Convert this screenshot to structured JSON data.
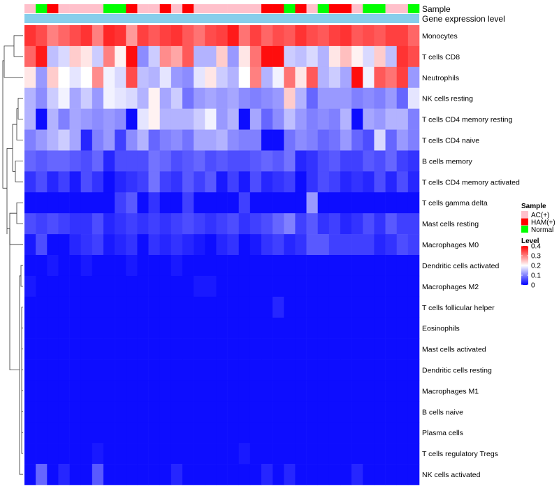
{
  "chart_data": {
    "type": "heatmap",
    "annotation_labels": {
      "sample": "Sample",
      "gene": "Gene expression level"
    },
    "sample_classes": [
      "AC(+)",
      "HAM(+)",
      "Normal"
    ],
    "sample_colors": {
      "AC(+)": "#ffc0cb",
      "HAM(+)": "#ff0000",
      "Normal": "#00ff00"
    },
    "sample_annotation": [
      "AC(+)",
      "Normal",
      "HAM(+)",
      "AC(+)",
      "AC(+)",
      "AC(+)",
      "AC(+)",
      "Normal",
      "Normal",
      "HAM(+)",
      "AC(+)",
      "AC(+)",
      "HAM(+)",
      "AC(+)",
      "HAM(+)",
      "AC(+)",
      "AC(+)",
      "AC(+)",
      "AC(+)",
      "AC(+)",
      "AC(+)",
      "HAM(+)",
      "HAM(+)",
      "Normal",
      "HAM(+)",
      "AC(+)",
      "Normal",
      "HAM(+)",
      "HAM(+)",
      "AC(+)",
      "Normal",
      "Normal",
      "AC(+)",
      "AC(+)",
      "Normal"
    ],
    "gene_annotation_color": "#87ceeb",
    "legend": {
      "sample_title": "Sample",
      "level_title": "Level",
      "ticks": [
        "0.4",
        "0.3",
        "0.2",
        "0.1",
        "0"
      ]
    },
    "color_scale": {
      "min": 0,
      "mid": 0.2,
      "max": 0.4,
      "low": "#0000ff",
      "midColor": "#ffffff",
      "high": "#ff0000"
    },
    "rows": [
      "Monocytes",
      "T cells CD8",
      "Neutrophils",
      "NK cells resting",
      "T cells CD4 memory resting",
      "T cells CD4 naive",
      "B cells memory",
      "T cells CD4 memory activated",
      "T cells gamma delta",
      "Mast cells resting",
      "Macrophages M0",
      "Dendritic cells activated",
      "Macrophages M2",
      "T cells follicular helper",
      "Eosinophils",
      "Mast cells activated",
      "Dendritic cells resting",
      "Macrophages M1",
      "B cells naive",
      "Plasma cells",
      "T cells regulatory  Tregs",
      "NK cells activated"
    ],
    "values": [
      [
        0.36,
        0.34,
        0.3,
        0.32,
        0.34,
        0.36,
        0.3,
        0.37,
        0.36,
        0.28,
        0.35,
        0.33,
        0.35,
        0.36,
        0.33,
        0.31,
        0.34,
        0.35,
        0.38,
        0.31,
        0.35,
        0.32,
        0.34,
        0.33,
        0.36,
        0.34,
        0.33,
        0.35,
        0.36,
        0.33,
        0.34,
        0.33,
        0.35,
        0.35,
        0.32
      ],
      [
        0.32,
        0.38,
        0.15,
        0.17,
        0.24,
        0.22,
        0.16,
        0.3,
        0.21,
        0.39,
        0.11,
        0.16,
        0.29,
        0.27,
        0.33,
        0.14,
        0.14,
        0.24,
        0.12,
        0.22,
        0.31,
        0.39,
        0.39,
        0.16,
        0.15,
        0.17,
        0.14,
        0.22,
        0.25,
        0.21,
        0.17,
        0.24,
        0.15,
        0.36,
        0.34
      ],
      [
        0.22,
        0.12,
        0.24,
        0.2,
        0.18,
        0.2,
        0.29,
        0.19,
        0.17,
        0.34,
        0.15,
        0.14,
        0.18,
        0.12,
        0.11,
        0.18,
        0.22,
        0.16,
        0.14,
        0.2,
        0.3,
        0.14,
        0.19,
        0.31,
        0.22,
        0.33,
        0.14,
        0.16,
        0.13,
        0.39,
        0.19,
        0.33,
        0.31,
        0.35,
        0.12
      ],
      [
        0.14,
        0.11,
        0.16,
        0.19,
        0.13,
        0.16,
        0.12,
        0.19,
        0.18,
        0.17,
        0.14,
        0.21,
        0.13,
        0.16,
        0.09,
        0.12,
        0.13,
        0.12,
        0.13,
        0.11,
        0.1,
        0.11,
        0.12,
        0.24,
        0.14,
        0.08,
        0.12,
        0.12,
        0.12,
        0.1,
        0.11,
        0.1,
        0.12,
        0.08,
        0.18
      ],
      [
        0.14,
        0.01,
        0.14,
        0.1,
        0.13,
        0.12,
        0.11,
        0.12,
        0.11,
        0.01,
        0.18,
        0.21,
        0.14,
        0.14,
        0.14,
        0.16,
        0.19,
        0.12,
        0.14,
        0.01,
        0.13,
        0.08,
        0.11,
        0.15,
        0.12,
        0.1,
        0.11,
        0.1,
        0.14,
        0.01,
        0.13,
        0.12,
        0.14,
        0.14,
        0.1
      ],
      [
        0.1,
        0.12,
        0.14,
        0.16,
        0.13,
        0.03,
        0.1,
        0.12,
        0.05,
        0.11,
        0.14,
        0.08,
        0.1,
        0.11,
        0.09,
        0.13,
        0.13,
        0.14,
        0.11,
        0.1,
        0.1,
        0.01,
        0.01,
        0.09,
        0.11,
        0.1,
        0.08,
        0.09,
        0.12,
        0.08,
        0.06,
        0.17,
        0.08,
        0.12,
        0.1
      ],
      [
        0.08,
        0.07,
        0.08,
        0.08,
        0.07,
        0.06,
        0.08,
        0.03,
        0.06,
        0.06,
        0.06,
        0.09,
        0.08,
        0.06,
        0.07,
        0.08,
        0.06,
        0.07,
        0.06,
        0.06,
        0.07,
        0.08,
        0.07,
        0.09,
        0.03,
        0.04,
        0.06,
        0.07,
        0.05,
        0.05,
        0.07,
        0.06,
        0.08,
        0.05,
        0.04
      ],
      [
        0.04,
        0.06,
        0.03,
        0.05,
        0.02,
        0.06,
        0.04,
        0.01,
        0.03,
        0.04,
        0.05,
        0.09,
        0.05,
        0.04,
        0.07,
        0.05,
        0.07,
        0.02,
        0.05,
        0.02,
        0.06,
        0.03,
        0.04,
        0.05,
        0.01,
        0.04,
        0.06,
        0.05,
        0.03,
        0.04,
        0.03,
        0.06,
        0.03,
        0.06,
        0.03
      ],
      [
        0.01,
        0.01,
        0.01,
        0.01,
        0.01,
        0.01,
        0.01,
        0.01,
        0.05,
        0.07,
        0.01,
        0.04,
        0.01,
        0.01,
        0.05,
        0.01,
        0.01,
        0.01,
        0.01,
        0.05,
        0.01,
        0.01,
        0.01,
        0.01,
        0.01,
        0.12,
        0.01,
        0.01,
        0.01,
        0.01,
        0.01,
        0.01,
        0.01,
        0.01,
        0.01
      ],
      [
        0.06,
        0.05,
        0.06,
        0.05,
        0.04,
        0.04,
        0.06,
        0.03,
        0.04,
        0.05,
        0.04,
        0.05,
        0.04,
        0.05,
        0.06,
        0.05,
        0.04,
        0.05,
        0.06,
        0.04,
        0.05,
        0.06,
        0.08,
        0.1,
        0.05,
        0.07,
        0.04,
        0.05,
        0.03,
        0.04,
        0.06,
        0.04,
        0.07,
        0.05,
        0.05
      ],
      [
        0.02,
        0.06,
        0.01,
        0.01,
        0.03,
        0.04,
        0.05,
        0.02,
        0.03,
        0.04,
        0.01,
        0.04,
        0.03,
        0.04,
        0.03,
        0.02,
        0.01,
        0.03,
        0.04,
        0.01,
        0.02,
        0.04,
        0.05,
        0.03,
        0.04,
        0.07,
        0.07,
        0.05,
        0.05,
        0.05,
        0.05,
        0.03,
        0.04,
        0.06,
        0.05
      ],
      [
        0.01,
        0.01,
        0.02,
        0.01,
        0.01,
        0.02,
        0.01,
        0.01,
        0.01,
        0.02,
        0.01,
        0.01,
        0.01,
        0.02,
        0.01,
        0.01,
        0.01,
        0.01,
        0.01,
        0.01,
        0.01,
        0.01,
        0.01,
        0.01,
        0.01,
        0.01,
        0.01,
        0.01,
        0.01,
        0.01,
        0.01,
        0.01,
        0.01,
        0.01,
        0.01
      ],
      [
        0.02,
        0.01,
        0.01,
        0.01,
        0.01,
        0.01,
        0.01,
        0.01,
        0.01,
        0.01,
        0.01,
        0.01,
        0.01,
        0.01,
        0.01,
        0.02,
        0.02,
        0.01,
        0.01,
        0.01,
        0.01,
        0.01,
        0.01,
        0.01,
        0.01,
        0.01,
        0.01,
        0.01,
        0.01,
        0.01,
        0.01,
        0.01,
        0.01,
        0.01,
        0.01
      ],
      [
        0.01,
        0.01,
        0.01,
        0.01,
        0.01,
        0.01,
        0.01,
        0.01,
        0.01,
        0.01,
        0.01,
        0.01,
        0.01,
        0.01,
        0.01,
        0.01,
        0.01,
        0.01,
        0.01,
        0.01,
        0.01,
        0.01,
        0.03,
        0.01,
        0.01,
        0.01,
        0.01,
        0.01,
        0.01,
        0.01,
        0.01,
        0.01,
        0.01,
        0.01,
        0.01
      ],
      [
        0.01,
        0.01,
        0.01,
        0.01,
        0.01,
        0.01,
        0.01,
        0.01,
        0.01,
        0.01,
        0.01,
        0.01,
        0.01,
        0.01,
        0.01,
        0.01,
        0.01,
        0.01,
        0.01,
        0.01,
        0.01,
        0.01,
        0.01,
        0.01,
        0.01,
        0.01,
        0.01,
        0.01,
        0.01,
        0.01,
        0.01,
        0.01,
        0.01,
        0.01,
        0.01
      ],
      [
        0.01,
        0.01,
        0.01,
        0.01,
        0.01,
        0.01,
        0.01,
        0.01,
        0.01,
        0.01,
        0.01,
        0.01,
        0.01,
        0.01,
        0.01,
        0.01,
        0.01,
        0.01,
        0.01,
        0.01,
        0.01,
        0.01,
        0.01,
        0.01,
        0.01,
        0.01,
        0.01,
        0.01,
        0.01,
        0.01,
        0.01,
        0.01,
        0.01,
        0.01,
        0.01
      ],
      [
        0.01,
        0.01,
        0.01,
        0.01,
        0.01,
        0.01,
        0.01,
        0.01,
        0.01,
        0.01,
        0.01,
        0.01,
        0.01,
        0.01,
        0.01,
        0.01,
        0.01,
        0.01,
        0.01,
        0.01,
        0.01,
        0.01,
        0.01,
        0.01,
        0.01,
        0.01,
        0.01,
        0.01,
        0.01,
        0.01,
        0.01,
        0.01,
        0.01,
        0.01,
        0.01
      ],
      [
        0.01,
        0.01,
        0.01,
        0.01,
        0.01,
        0.01,
        0.01,
        0.01,
        0.01,
        0.01,
        0.01,
        0.01,
        0.01,
        0.01,
        0.01,
        0.01,
        0.01,
        0.01,
        0.01,
        0.01,
        0.01,
        0.01,
        0.01,
        0.01,
        0.01,
        0.01,
        0.01,
        0.01,
        0.01,
        0.01,
        0.01,
        0.01,
        0.01,
        0.01,
        0.01
      ],
      [
        0.01,
        0.01,
        0.01,
        0.01,
        0.01,
        0.01,
        0.01,
        0.01,
        0.01,
        0.01,
        0.01,
        0.01,
        0.01,
        0.01,
        0.01,
        0.01,
        0.01,
        0.01,
        0.01,
        0.01,
        0.01,
        0.01,
        0.01,
        0.01,
        0.01,
        0.01,
        0.01,
        0.01,
        0.01,
        0.01,
        0.01,
        0.01,
        0.01,
        0.01,
        0.01
      ],
      [
        0.01,
        0.01,
        0.01,
        0.01,
        0.01,
        0.01,
        0.01,
        0.01,
        0.01,
        0.01,
        0.01,
        0.01,
        0.01,
        0.01,
        0.01,
        0.01,
        0.01,
        0.01,
        0.01,
        0.01,
        0.01,
        0.01,
        0.01,
        0.01,
        0.01,
        0.01,
        0.01,
        0.01,
        0.01,
        0.01,
        0.01,
        0.01,
        0.01,
        0.01,
        0.01
      ],
      [
        0.01,
        0.01,
        0.01,
        0.01,
        0.01,
        0.01,
        0.02,
        0.01,
        0.01,
        0.01,
        0.01,
        0.01,
        0.01,
        0.01,
        0.01,
        0.01,
        0.01,
        0.01,
        0.01,
        0.02,
        0.01,
        0.01,
        0.01,
        0.01,
        0.01,
        0.01,
        0.01,
        0.01,
        0.01,
        0.01,
        0.01,
        0.01,
        0.01,
        0.01,
        0.01
      ],
      [
        0.01,
        0.08,
        0.01,
        0.03,
        0.01,
        0.01,
        0.07,
        0.01,
        0.01,
        0.01,
        0.01,
        0.01,
        0.01,
        0.03,
        0.01,
        0.01,
        0.01,
        0.01,
        0.01,
        0.01,
        0.01,
        0.03,
        0.01,
        0.03,
        0.01,
        0.01,
        0.01,
        0.01,
        0.01,
        0.03,
        0.01,
        0.01,
        0.01,
        0.01,
        0.01
      ]
    ]
  }
}
